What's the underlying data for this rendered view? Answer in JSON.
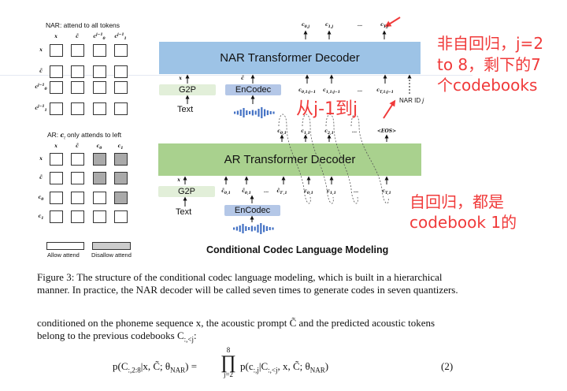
{
  "nar_matrix": {
    "title": "NAR:  attend to all tokens",
    "cols": [
      {
        "b": "x",
        "s": ""
      },
      {
        "b": "c̃",
        "s": ""
      },
      {
        "b": "c",
        "s": "0",
        "sup": "j−1"
      },
      {
        "b": "c",
        "s": "1",
        "sup": "j−1"
      }
    ],
    "rows": [
      {
        "b": "x",
        "s": ""
      },
      {
        "b": "c̃",
        "s": ""
      },
      {
        "b": "c",
        "s": "0",
        "sup": "j−1"
      },
      {
        "b": "c",
        "s": "1",
        "sup": "j−1"
      }
    ],
    "disallowed": [
      [
        0,
        0,
        0,
        0
      ],
      [
        0,
        0,
        0,
        0
      ],
      [
        0,
        0,
        0,
        0
      ],
      [
        0,
        0,
        0,
        0
      ]
    ]
  },
  "ar_matrix": {
    "title_prefix": "AR: ",
    "title_var": "c",
    "title_sub": "t",
    "title_suffix": " only attends to left",
    "cols": [
      {
        "b": "x",
        "s": ""
      },
      {
        "b": "c̃",
        "s": ""
      },
      {
        "b": "c",
        "s": "0"
      },
      {
        "b": "c",
        "s": "1"
      }
    ],
    "rows": [
      {
        "b": "x",
        "s": ""
      },
      {
        "b": "c̃",
        "s": ""
      },
      {
        "b": "c",
        "s": "0"
      },
      {
        "b": "c",
        "s": "1"
      }
    ],
    "disallowed": [
      [
        0,
        0,
        1,
        1
      ],
      [
        0,
        0,
        1,
        1
      ],
      [
        0,
        0,
        0,
        1
      ],
      [
        0,
        0,
        0,
        0
      ]
    ]
  },
  "legend": {
    "allow": "Allow attend",
    "disallow": "Disallow attend"
  },
  "nar": {
    "title": "NAR Transformer Decoder",
    "color": "#9dc3e6",
    "outputs": [
      {
        "b": "c",
        "s": "0,j"
      },
      {
        "b": "c",
        "s": "1,j"
      },
      {
        "b": "...",
        "s": ""
      },
      {
        "b": "c",
        "s": "T,j"
      }
    ],
    "inputs": [
      {
        "b": "c",
        "s": "0,1:j−1"
      },
      {
        "b": "c",
        "s": "1,1:j−1"
      },
      {
        "b": "...",
        "s": ""
      },
      {
        "b": "c",
        "s": "T,1:j−1"
      }
    ],
    "x_label": "x",
    "c_label": "c̃",
    "g2p": "G2P",
    "encodec": "EnCodec",
    "text": "Text",
    "nar_id": "NAR ID ",
    "nar_id_var": "j"
  },
  "ar": {
    "title": "AR Transformer Decoder",
    "color": "#a9d18e",
    "outputs": [
      {
        "b": "c",
        "s": "0,1"
      },
      {
        "b": "c",
        "s": "1,1"
      },
      {
        "b": "c",
        "s": "2,1"
      },
      {
        "b": "...",
        "s": ""
      },
      {
        "b": "<EOS>",
        "s": ""
      }
    ],
    "prompt_inputs": [
      {
        "b": "c̃",
        "s": "0,1"
      },
      {
        "b": "c̃",
        "s": "0,1"
      },
      {
        "b": "...",
        "s": ""
      },
      {
        "b": "c̃",
        "s": "T′,1"
      }
    ],
    "inputs": [
      {
        "b": "c",
        "s": "0,1"
      },
      {
        "b": "c",
        "s": "1,1"
      },
      {
        "b": "...",
        "s": ""
      },
      {
        "b": "c",
        "s": "T,1"
      }
    ],
    "x_label": "x",
    "g2p": "G2P",
    "encodec": "EnCodec",
    "text": "Text"
  },
  "colors": {
    "g2p": "#e2efd9",
    "encodec": "#b4c7e7",
    "waveform": "#4472c4",
    "annotation": "#f03a3a"
  },
  "figure_title": "Conditional Codec Language Modeling",
  "annotations": {
    "nar_note": [
      "非自回归，j=2",
      "to 8，剩下的7",
      "个codebooks"
    ],
    "ar_note": [
      "自回归，都是",
      "codebook 1的"
    ],
    "mid_note": "从j-1到j"
  },
  "caption": [
    "Figure 3: The structure of the conditional codec language modeling, which is built in a hierarchical",
    "manner. In practice, the NAR decoder will be called seven times to generate codes in seven quantizers."
  ],
  "paragraph": {
    "line1": "conditioned on the phoneme sequence x, the acoustic prompt C̃ and the predicted acoustic tokens",
    "line2_text": "belong to the previous codebooks C",
    "line2_sub": ":,<j",
    "line2_end": ":"
  },
  "equation": {
    "lhs": [
      {
        "t": "p(C",
        "s": ":,2:8"
      },
      {
        "t": "|x, C̃; θ",
        "s": "NAR"
      },
      {
        "t": ") =",
        "s": ""
      }
    ],
    "prod": "∏",
    "prod_top": "8",
    "prod_bottom": "j=2",
    "rhs": [
      {
        "t": "p(c",
        "s": ":,j"
      },
      {
        "t": "|C",
        "s": ":,<j"
      },
      {
        "t": ", x, C̃; θ",
        "s": "NAR"
      },
      {
        "t": ")",
        "s": ""
      }
    ],
    "number": "(2)"
  }
}
